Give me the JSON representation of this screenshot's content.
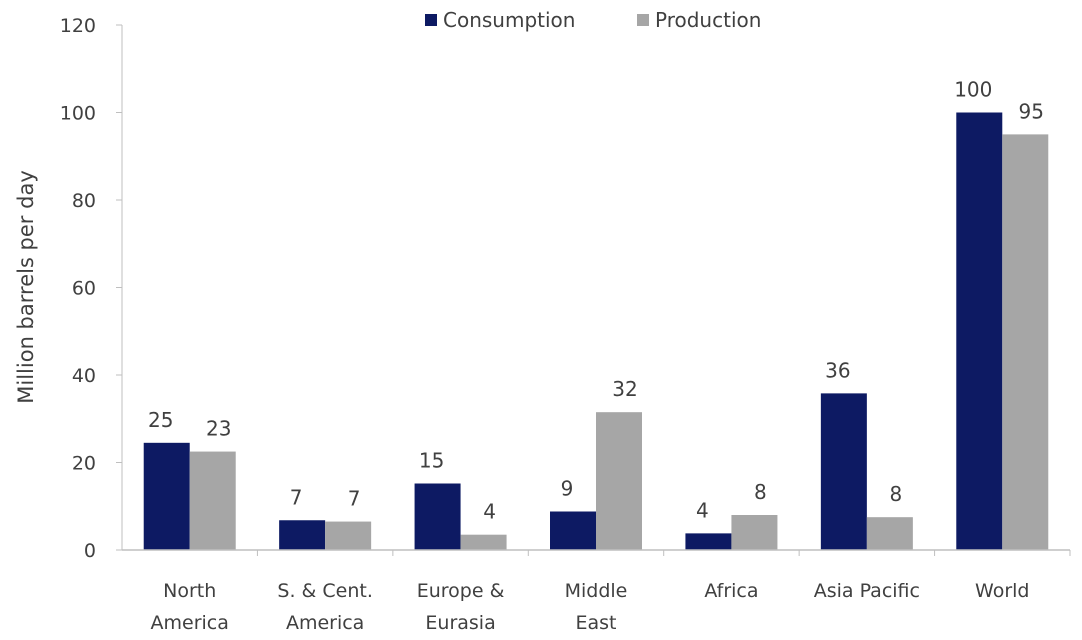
{
  "chart_data": {
    "type": "bar",
    "title": "",
    "xlabel": "",
    "ylabel": "Million barrels per day",
    "ylim": [
      0,
      120
    ],
    "yticks": [
      0,
      20,
      40,
      60,
      80,
      100,
      120
    ],
    "grid": false,
    "legend_position": "top",
    "categories": [
      [
        "North",
        "America"
      ],
      [
        "S. & Cent.",
        "America"
      ],
      [
        "Europe &",
        "Eurasia"
      ],
      [
        "Middle",
        "East"
      ],
      [
        "Africa"
      ],
      [
        "Asia Pacific"
      ],
      [
        "World"
      ]
    ],
    "series": [
      {
        "name": "Consumption",
        "color": "#0d1a63",
        "values": [
          24.5,
          6.8,
          15.2,
          8.8,
          3.8,
          35.8,
          100
        ],
        "labels": [
          "25",
          "7",
          "15",
          "9",
          "4",
          "36",
          "100"
        ]
      },
      {
        "name": "Production",
        "color": "#a6a6a6",
        "values": [
          22.5,
          6.5,
          3.5,
          31.5,
          8.0,
          7.5,
          95
        ],
        "labels": [
          "23",
          "7",
          "4",
          "32",
          "8",
          "8",
          "95"
        ]
      }
    ]
  }
}
